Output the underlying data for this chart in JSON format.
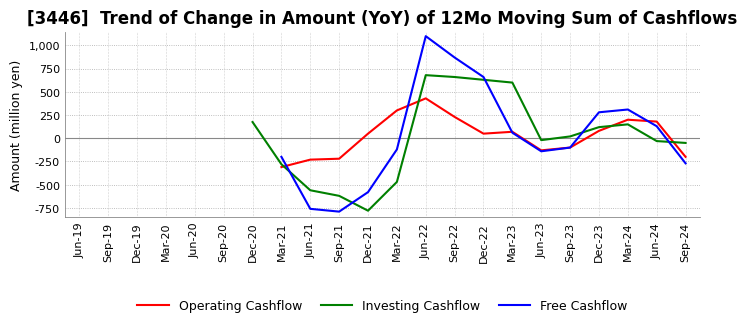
{
  "title": "[3446]  Trend of Change in Amount (YoY) of 12Mo Moving Sum of Cashflows",
  "ylabel": "Amount (million yen)",
  "ylim": [
    -850,
    1150
  ],
  "yticks": [
    -750,
    -500,
    -250,
    0,
    250,
    500,
    750,
    1000
  ],
  "x_labels": [
    "Jun-19",
    "Sep-19",
    "Dec-19",
    "Mar-20",
    "Jun-20",
    "Sep-20",
    "Dec-20",
    "Mar-21",
    "Jun-21",
    "Sep-21",
    "Dec-21",
    "Mar-22",
    "Jun-22",
    "Sep-22",
    "Dec-22",
    "Mar-23",
    "Jun-23",
    "Sep-23",
    "Dec-23",
    "Mar-24",
    "Jun-24",
    "Sep-24"
  ],
  "operating": [
    null,
    null,
    null,
    null,
    null,
    null,
    null,
    -310,
    -230,
    -220,
    50,
    300,
    430,
    230,
    50,
    70,
    -130,
    -100,
    80,
    200,
    180,
    -200
  ],
  "investing": [
    null,
    null,
    null,
    null,
    null,
    null,
    175,
    -280,
    -560,
    -620,
    -780,
    -470,
    680,
    660,
    630,
    600,
    -20,
    20,
    120,
    150,
    -30,
    -50
  ],
  "free": [
    null,
    null,
    null,
    null,
    null,
    null,
    null,
    -200,
    -760,
    -790,
    -580,
    -120,
    1100,
    870,
    660,
    60,
    -140,
    -100,
    280,
    310,
    130,
    -270
  ],
  "operating_color": "#ff0000",
  "investing_color": "#008000",
  "free_color": "#0000ff",
  "bg_color": "#ffffff",
  "plot_bg_color": "#ffffff",
  "grid_color": "#aaaaaa",
  "title_fontsize": 12,
  "label_fontsize": 9
}
